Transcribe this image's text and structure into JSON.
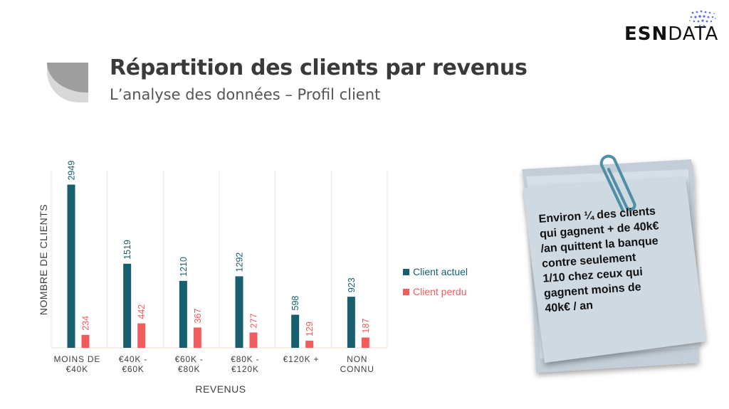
{
  "header": {
    "title": "Répartition des clients par revenus",
    "subtitle": "L’analyse des données – Profil client"
  },
  "logo": {
    "part1": "ESN",
    "part2": "DATA"
  },
  "chart_data": {
    "type": "bar",
    "categories": [
      [
        "MOINS DE",
        "€40K"
      ],
      [
        "€40K -",
        "€60K"
      ],
      [
        "€60K -",
        "€80K"
      ],
      [
        "€80K -",
        "€120K"
      ],
      [
        "€120K +"
      ],
      [
        "NON",
        "CONNU"
      ]
    ],
    "series": [
      {
        "name": "Client actuel",
        "color": "#175e6e",
        "values": [
          2949,
          1519,
          1210,
          1292,
          598,
          923
        ]
      },
      {
        "name": "Client perdu",
        "color": "#f25c5c",
        "values": [
          234,
          442,
          367,
          277,
          129,
          187
        ]
      }
    ],
    "xlabel": "REVENUS",
    "ylabel": "NOMBRE DE CLIENTS",
    "ylim": [
      0,
      3200
    ],
    "legend": "right",
    "grid": false
  },
  "note": {
    "text": "Environ ¼ des clients\nqui gagnent + de 40k€\n/an quittent la banque\ncontre seulement\n1/10 chez ceux qui\ngagnent moins de\n40k€ / an"
  }
}
